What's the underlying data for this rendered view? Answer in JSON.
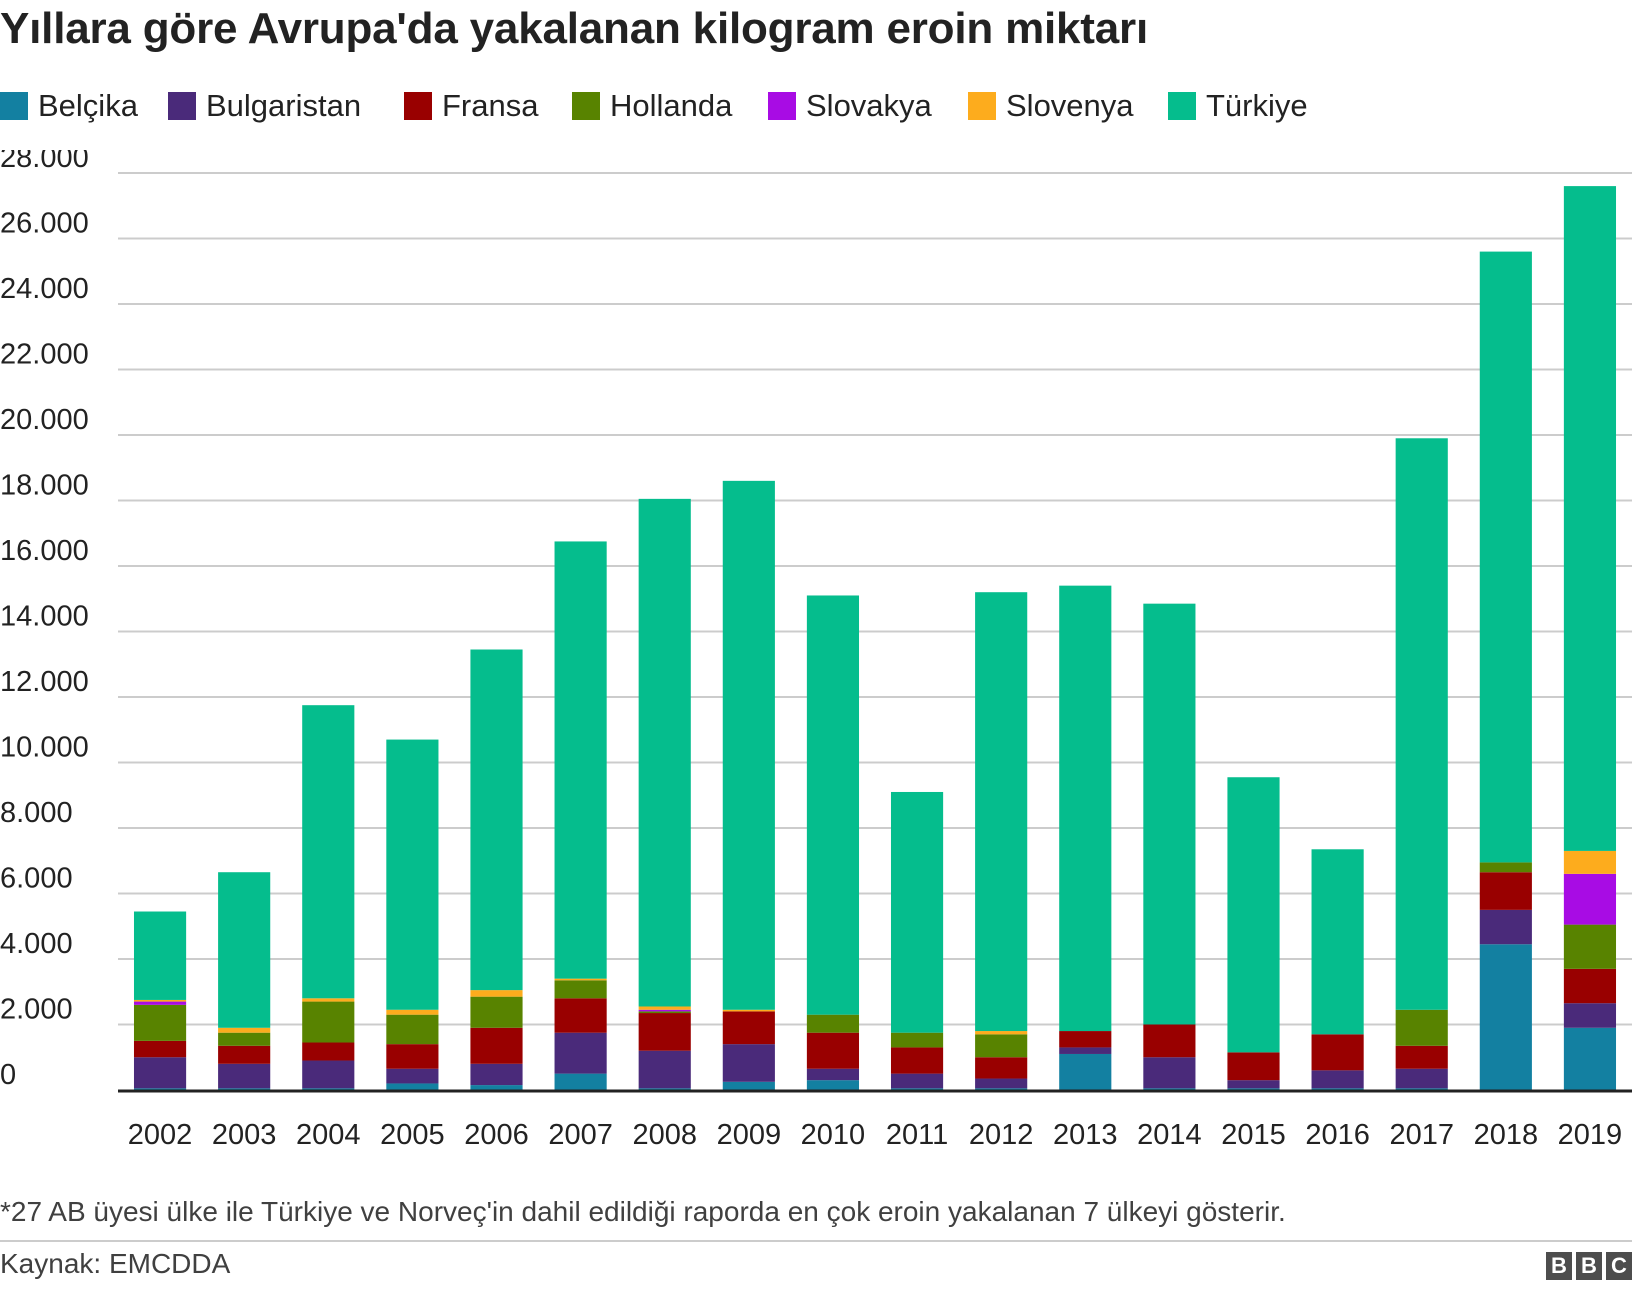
{
  "title": "Yıllara göre Avrupa'da yakalanan kilogram eroin miktarı",
  "footnote": "*27 AB üyesi ülke ile Türkiye ve Norveç'in dahil edildiği raporda en çok eroin yakalanan 7 ülkeyi gösterir.",
  "source": "Kaynak: EMCDDA",
  "logo": {
    "letters": [
      "B",
      "B",
      "C"
    ]
  },
  "chart_data": {
    "type": "bar",
    "stacked": true,
    "categories": [
      "2002",
      "2003",
      "2004",
      "2005",
      "2006",
      "2007",
      "2008",
      "2009",
      "2010",
      "2011",
      "2012",
      "2013",
      "2014",
      "2015",
      "2016",
      "2017",
      "2018",
      "2019"
    ],
    "ylim": [
      0,
      28000
    ],
    "yticks": [
      0,
      2000,
      4000,
      6000,
      8000,
      10000,
      12000,
      14000,
      16000,
      18000,
      20000,
      22000,
      24000,
      26000,
      28000
    ],
    "ytick_labels": [
      "0",
      "2.000",
      "4.000",
      "6.000",
      "8.000",
      "10.000",
      "12.000",
      "14.000",
      "16.000",
      "18.000",
      "20.000",
      "22.000",
      "24.000",
      "26.000",
      "28.000"
    ],
    "grid": true,
    "legend_position": "top-left",
    "series": [
      {
        "name": "Belçika",
        "color": "#1380a1",
        "values": [
          50,
          50,
          50,
          200,
          150,
          500,
          50,
          250,
          300,
          50,
          50,
          1100,
          50,
          50,
          50,
          50,
          4450,
          1900
        ]
      },
      {
        "name": "Bulgaristan",
        "color": "#4a2a7a",
        "values": [
          950,
          750,
          850,
          450,
          650,
          1250,
          1150,
          1150,
          350,
          450,
          300,
          200,
          950,
          250,
          550,
          600,
          1050,
          750
        ]
      },
      {
        "name": "Fransa",
        "color": "#990000",
        "values": [
          500,
          550,
          550,
          750,
          1100,
          1050,
          1150,
          1000,
          1100,
          800,
          650,
          500,
          1000,
          850,
          1100,
          700,
          1150,
          1050
        ]
      },
      {
        "name": "Hollanda",
        "color": "#588300",
        "values": [
          1100,
          400,
          1250,
          900,
          950,
          550,
          50,
          0,
          550,
          450,
          700,
          0,
          0,
          0,
          0,
          1100,
          300,
          1350
        ]
      },
      {
        "name": "Slovakya",
        "color": "#a80ce4",
        "values": [
          100,
          0,
          0,
          0,
          0,
          0,
          50,
          0,
          0,
          0,
          0,
          0,
          0,
          0,
          0,
          0,
          0,
          1550
        ]
      },
      {
        "name": "Slovenya",
        "color": "#fdac1d",
        "values": [
          50,
          150,
          100,
          150,
          200,
          50,
          100,
          50,
          0,
          0,
          100,
          0,
          0,
          0,
          0,
          0,
          0,
          700
        ]
      },
      {
        "name": "Türkiye",
        "color": "#05bd8d",
        "values": [
          2700,
          4750,
          8950,
          8250,
          10400,
          13350,
          15500,
          16150,
          12800,
          7350,
          13400,
          13600,
          12850,
          8400,
          5650,
          17450,
          18650,
          20300
        ]
      }
    ]
  }
}
